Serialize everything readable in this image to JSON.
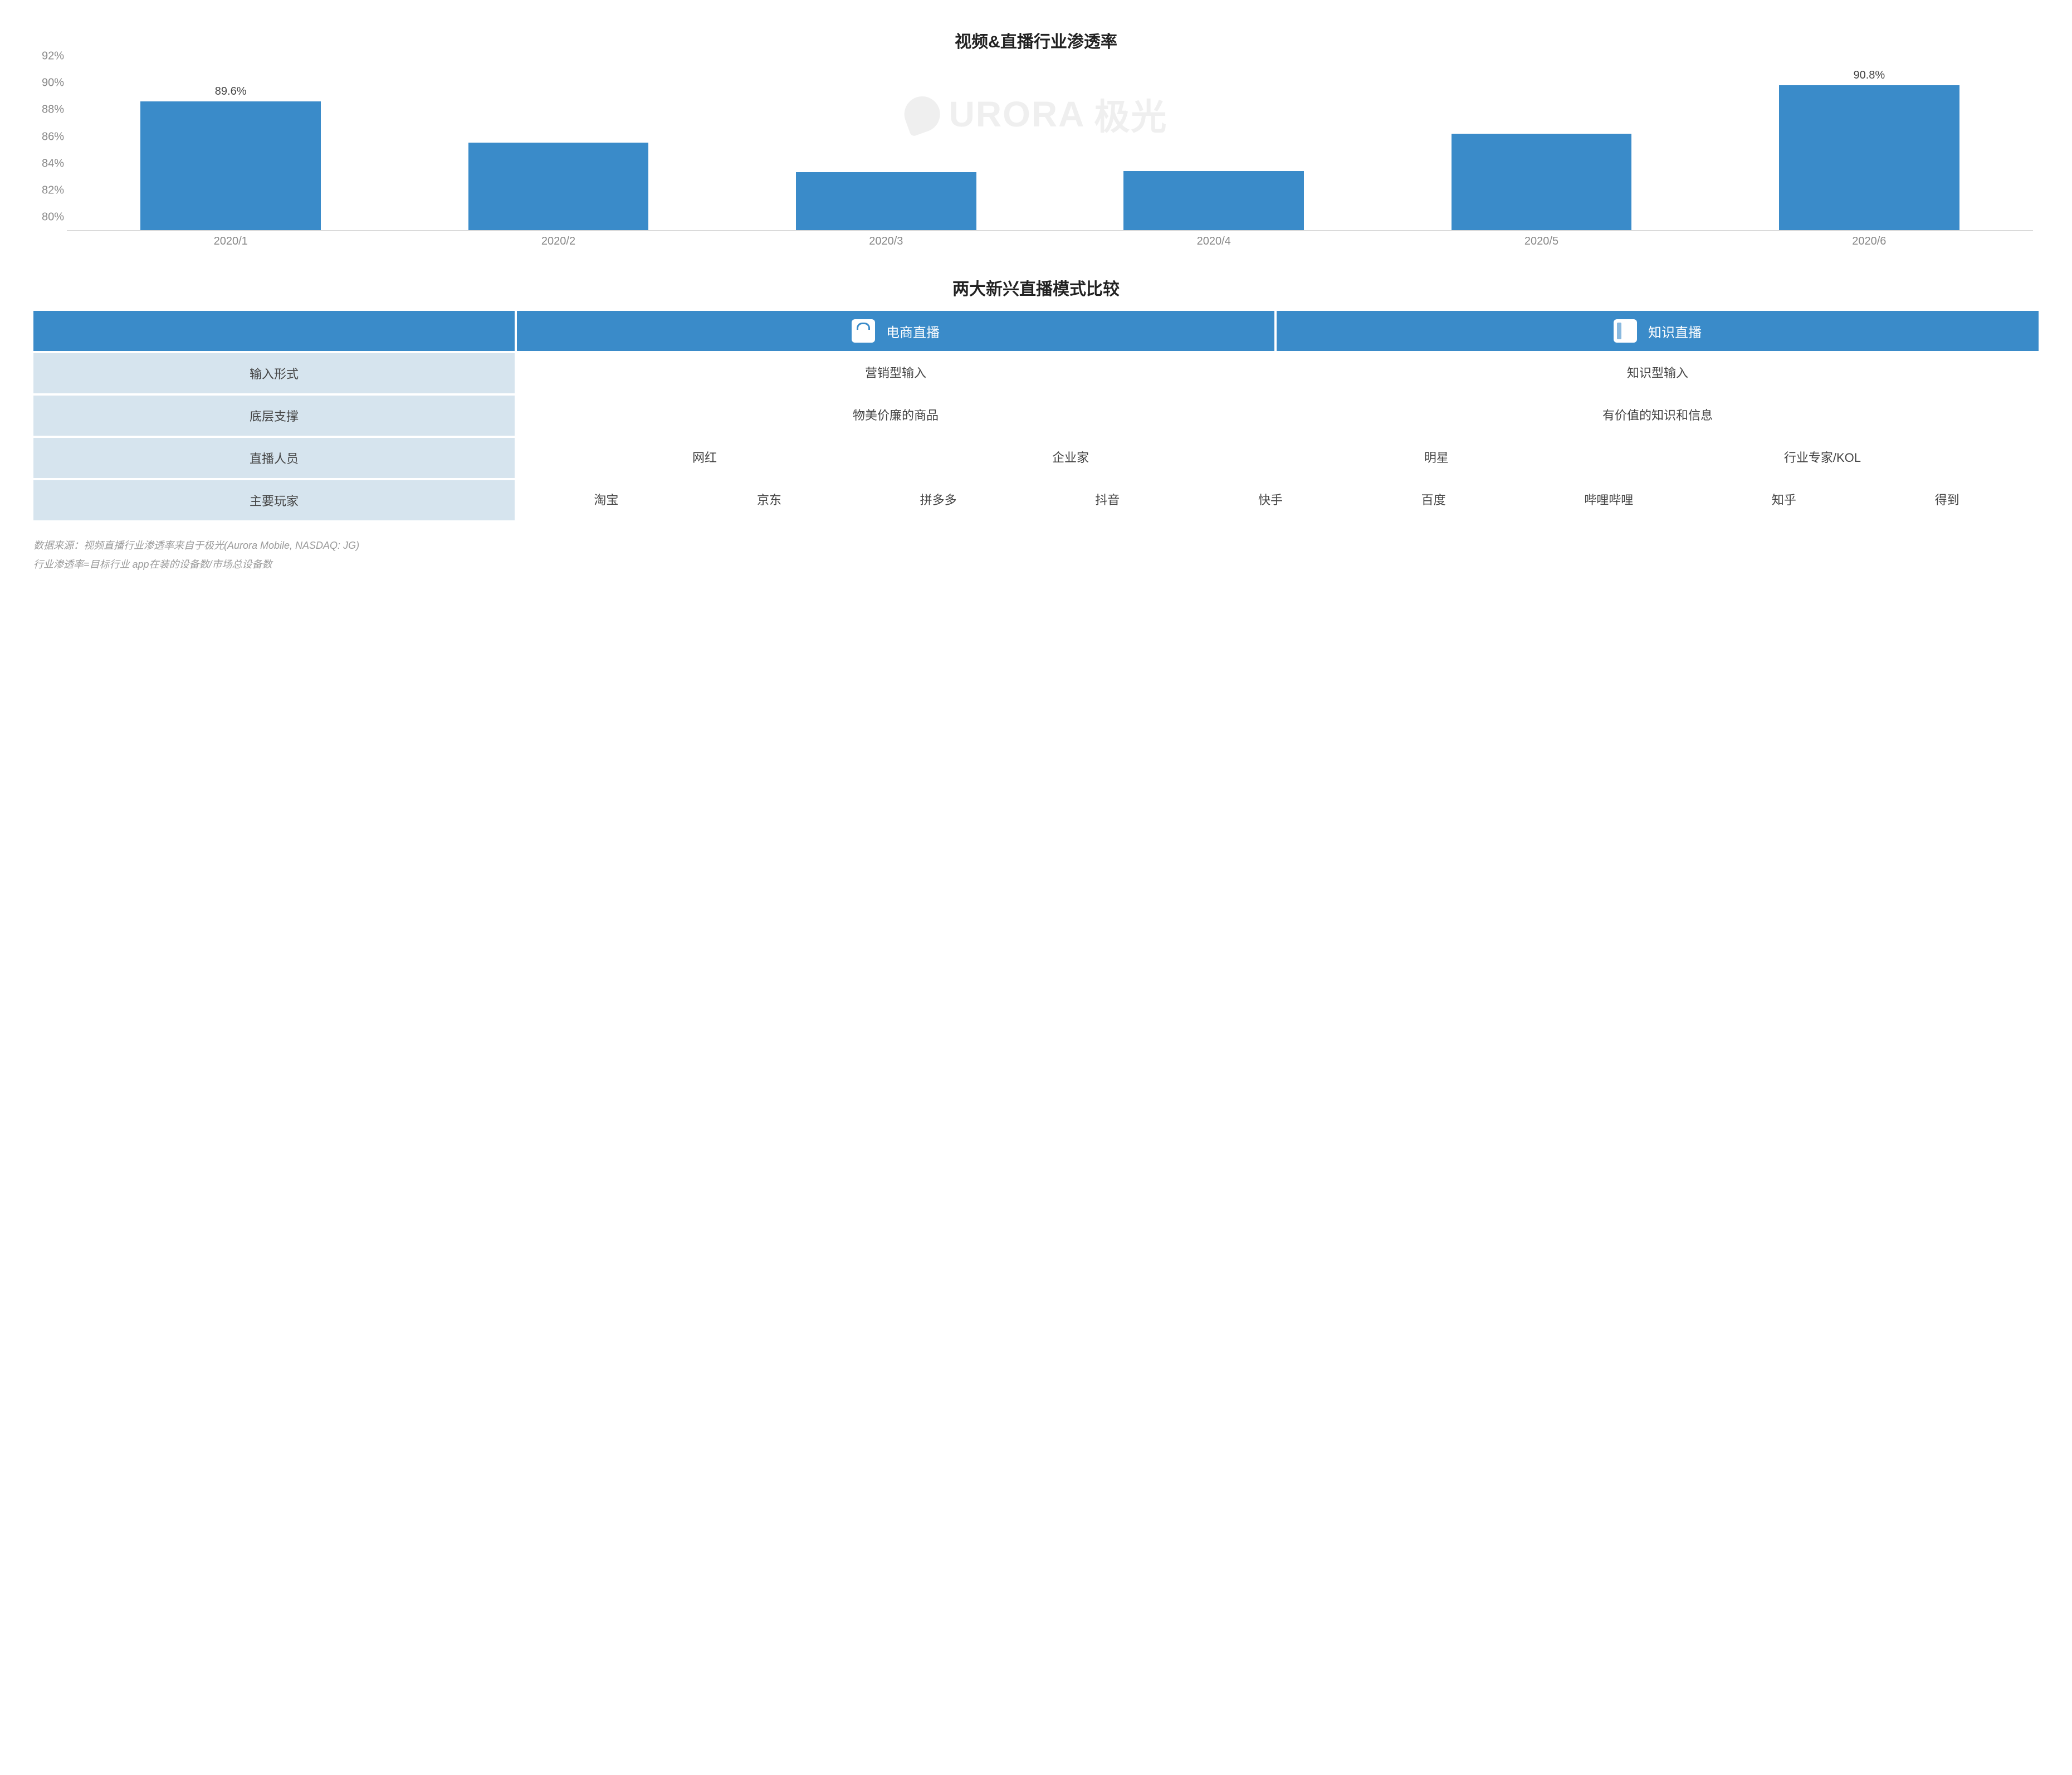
{
  "chart": {
    "title": "视频&直播行业渗透率",
    "type": "bar",
    "ymin": 80,
    "ymax": 92,
    "ytick_step": 2,
    "yticks": [
      "80%",
      "82%",
      "84%",
      "86%",
      "88%",
      "90%",
      "92%"
    ],
    "categories": [
      "2020/1",
      "2020/2",
      "2020/3",
      "2020/4",
      "2020/5",
      "2020/6"
    ],
    "values": [
      89.6,
      86.5,
      84.3,
      84.4,
      87.2,
      90.8
    ],
    "value_labels": [
      "89.6%",
      "",
      "",
      "",
      "",
      "90.8%"
    ],
    "bar_color": "#3a8bc9",
    "axis_text_color": "#888888",
    "value_text_color": "#444444",
    "bar_width_ratio": 0.55,
    "background_color": "#ffffff",
    "axis_line_color": "#cfcfcf",
    "label_fontsize": 20,
    "title_fontsize": 30
  },
  "watermark": {
    "text_en": "URORA",
    "text_cn": "极光",
    "color": "#efefef"
  },
  "table": {
    "title": "两大新兴直播模式比较",
    "header_blank": "",
    "headers": [
      {
        "icon": "bag",
        "label": "电商直播"
      },
      {
        "icon": "book",
        "label": "知识直播"
      }
    ],
    "header_bg": "#3a8bc9",
    "header_text_color": "#ffffff",
    "label_bg": "#d6e4ee",
    "row_text_color": "#444444",
    "rows": [
      {
        "label": "输入形式",
        "col1": [
          "营销型输入"
        ],
        "col2": [
          "知识型输入"
        ],
        "split": true
      },
      {
        "label": "底层支撑",
        "col1": [
          "物美价廉的商品"
        ],
        "col2": [
          "有价值的知识和信息"
        ],
        "split": true
      },
      {
        "label": "直播人员",
        "spread": [
          "网红",
          "企业家",
          "明星",
          "行业专家/KOL"
        ],
        "split": false
      },
      {
        "label": "主要玩家",
        "spread": [
          "淘宝",
          "京东",
          "拼多多",
          "抖音",
          "快手",
          "百度",
          "哔哩哔哩",
          "知乎",
          "得到"
        ],
        "split": false
      }
    ]
  },
  "footer": {
    "line1": "数据来源：视频直播行业渗透率来自于极光(Aurora Mobile, NASDAQ: JG)",
    "line2": "行业渗透率=目标行业 app在装的设备数/市场总设备数"
  }
}
